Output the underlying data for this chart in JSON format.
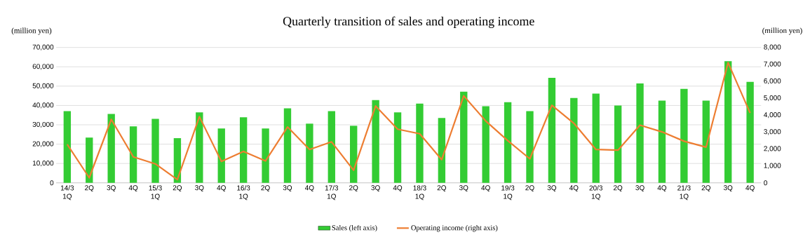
{
  "chart_data": {
    "type": "bar",
    "title": "Quarterly transition of sales and operating income",
    "ylabel": "(million yen)",
    "y2label": "(million yen)",
    "categories": [
      "14/3 1Q",
      "2Q",
      "3Q",
      "4Q",
      "15/3 1Q",
      "2Q",
      "3Q",
      "4Q",
      "16/3 1Q",
      "2Q",
      "3Q",
      "4Q",
      "17/3 1Q",
      "2Q",
      "3Q",
      "4Q",
      "18/3 1Q",
      "2Q",
      "3Q",
      "4Q",
      "19/3 1Q",
      "2Q",
      "3Q",
      "4Q",
      "20/3 1Q",
      "2Q",
      "3Q",
      "4Q",
      "21/3 1Q",
      "2Q",
      "3Q",
      "4Q"
    ],
    "series": [
      {
        "name": "Sales (left axis)",
        "color": "#33cc33",
        "values": [
          37100,
          23400,
          35600,
          29200,
          33100,
          23100,
          36400,
          28100,
          33900,
          28100,
          38500,
          30600,
          37100,
          29500,
          42800,
          36400,
          41000,
          33500,
          47100,
          39600,
          41700,
          37100,
          54300,
          43900,
          46100,
          40000,
          51400,
          42500,
          48600,
          42500,
          62900,
          52200
        ]
      },
      {
        "name": "Operating income (right axis)",
        "type": "line",
        "axis": "y2",
        "color": "#ed7d31",
        "values": [
          2270,
          300,
          3750,
          1530,
          1120,
          190,
          3910,
          1260,
          1850,
          1290,
          3300,
          1970,
          2420,
          740,
          4540,
          3170,
          2900,
          1370,
          5140,
          3650,
          2490,
          1420,
          4580,
          3520,
          1970,
          1930,
          3410,
          3010,
          2460,
          2110,
          7100,
          4130
        ]
      }
    ],
    "ylim": [
      0,
      70000
    ],
    "yticks": [
      0,
      {
        "value": 10000,
        "label": "10,000"
      },
      {
        "value": 20000,
        "label": "20,000"
      },
      {
        "value": 30000,
        "label": "30,000"
      },
      {
        "value": 40000,
        "label": "40,000"
      },
      {
        "value": 50000,
        "label": "50,000"
      },
      {
        "value": 60000,
        "label": "60,000"
      },
      {
        "value": 70000,
        "label": "70,000"
      }
    ],
    "y2lim": [
      0,
      8000
    ],
    "y2ticks": [
      0,
      {
        "value": 1000,
        "label": "1,000"
      },
      {
        "value": 2000,
        "label": "2,000"
      },
      {
        "value": 3000,
        "label": "3,000"
      },
      {
        "value": 4000,
        "label": "4,000"
      },
      {
        "value": 5000,
        "label": "5,000"
      },
      {
        "value": 6000,
        "label": "6,000"
      },
      {
        "value": 7000,
        "label": "7,000"
      },
      {
        "value": 8000,
        "label": "8,000"
      }
    ],
    "grid": "y",
    "legend": "bottom"
  }
}
